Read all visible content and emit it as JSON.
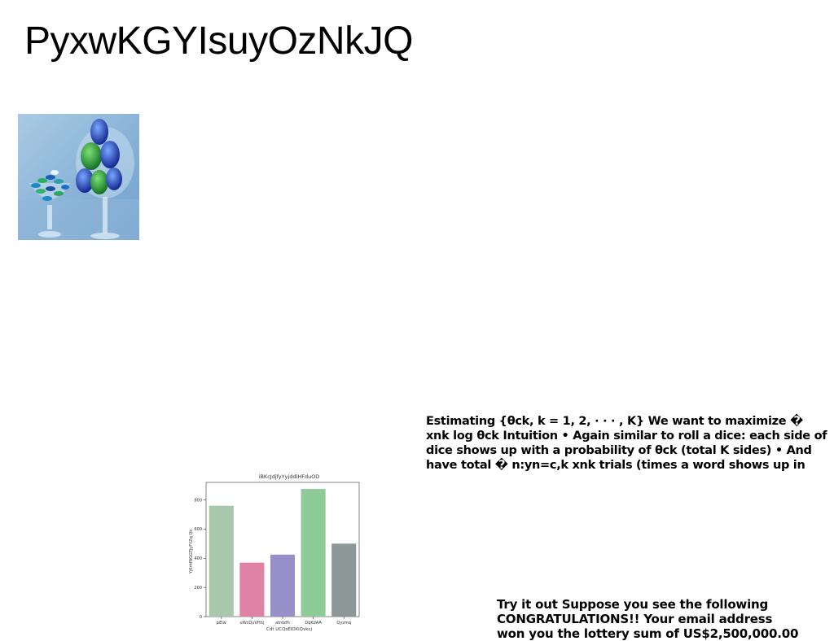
{
  "title": "PyxwKGYIsuyOzNkJQ",
  "image": {
    "icon": "candy-glasses-photo"
  },
  "paragraph1": "Estimating {θck, k = 1, 2, · · · , K} We want to maximize �\nxnk log θck Intuition • Again similar to roll a dice: each side of\ndice shows up with a probability of θck (total K sides) • And\nhave total � n:yn=c,k xnk trials (times a word shows up in",
  "paragraph2": "Try it out Suppose you see the following\nCONGRATULATIONS!! Your email address\nwon you the lottery sum of US$2,500,000.00",
  "chart_data": {
    "type": "bar",
    "title": "iBKcJdjfyYyjddlHFduOD",
    "xlabel": "Cdt UCQsEIOXiQvkcj",
    "ylabel": "YjKrhfNGGTJyFYZq Qk",
    "categories": [
      "pElw",
      "uWcQuVHhj",
      "atrdzfh",
      "DqKdAA",
      "Qyzmq"
    ],
    "values": [
      760,
      370,
      425,
      875,
      500
    ],
    "colors": [
      "#a8c8ab",
      "#de82a6",
      "#9790c8",
      "#8ecb98",
      "#8c9798"
    ],
    "yticks": [
      0,
      200,
      400,
      600,
      800
    ],
    "ylim": [
      0,
      920
    ],
    "grid": false
  }
}
